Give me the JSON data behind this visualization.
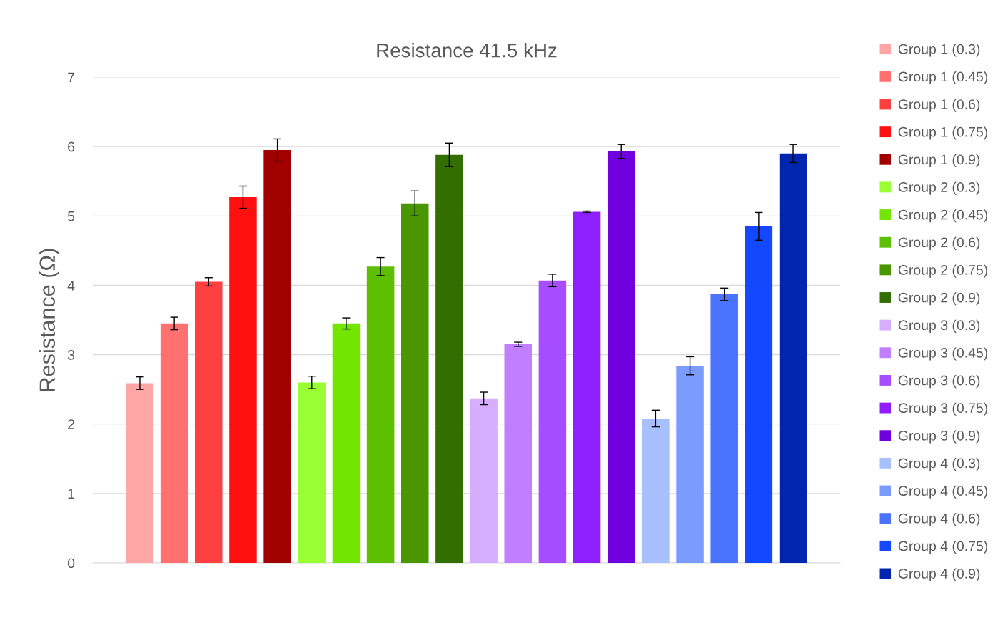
{
  "chart_data": {
    "type": "bar",
    "title": "Resistance 41.5 kHz",
    "ylabel": "Resistance (Ω)",
    "categories": [
      null
    ],
    "series": [
      {
        "name": "Group 1 (0.3)",
        "color": "#ffa6a6",
        "values": [
          2.59
        ],
        "errors": [
          0.09
        ]
      },
      {
        "name": "Group 1 (0.45)",
        "color": "#ff7070",
        "values": [
          3.45
        ],
        "errors": [
          0.09
        ]
      },
      {
        "name": "Group 1 (0.6)",
        "color": "#ff4040",
        "values": [
          4.05
        ],
        "errors": [
          0.06
        ]
      },
      {
        "name": "Group 1 (0.75)",
        "color": "#ff1010",
        "values": [
          5.27
        ],
        "errors": [
          0.16
        ]
      },
      {
        "name": "Group 1 (0.9)",
        "color": "#a00000",
        "values": [
          5.95
        ],
        "errors": [
          0.16
        ]
      },
      {
        "name": "Group 2 (0.3)",
        "color": "#99ff33",
        "values": [
          2.6
        ],
        "errors": [
          0.09
        ]
      },
      {
        "name": "Group 2 (0.45)",
        "color": "#72e600",
        "values": [
          3.45
        ],
        "errors": [
          0.08
        ]
      },
      {
        "name": "Group 2 (0.6)",
        "color": "#5cbf00",
        "values": [
          4.27
        ],
        "errors": [
          0.13
        ]
      },
      {
        "name": "Group 2 (0.75)",
        "color": "#4a9600",
        "values": [
          5.18
        ],
        "errors": [
          0.18
        ]
      },
      {
        "name": "Group 2 (0.9)",
        "color": "#336e00",
        "values": [
          5.88
        ],
        "errors": [
          0.17
        ]
      },
      {
        "name": "Group 3 (0.3)",
        "color": "#d6aeff",
        "values": [
          2.37
        ],
        "errors": [
          0.09
        ]
      },
      {
        "name": "Group 3 (0.45)",
        "color": "#bf7fff",
        "values": [
          3.15
        ],
        "errors": [
          0.03
        ]
      },
      {
        "name": "Group 3 (0.6)",
        "color": "#a64dff",
        "values": [
          4.07
        ],
        "errors": [
          0.09
        ]
      },
      {
        "name": "Group 3 (0.75)",
        "color": "#8f1fff",
        "values": [
          5.06
        ],
        "errors": [
          0.01
        ]
      },
      {
        "name": "Group 3 (0.9)",
        "color": "#7000e0",
        "values": [
          5.93
        ],
        "errors": [
          0.1
        ]
      },
      {
        "name": "Group 4 (0.3)",
        "color": "#a8c0ff",
        "values": [
          2.08
        ],
        "errors": [
          0.12
        ]
      },
      {
        "name": "Group 4 (0.45)",
        "color": "#7b9bff",
        "values": [
          2.84
        ],
        "errors": [
          0.13
        ]
      },
      {
        "name": "Group 4 (0.6)",
        "color": "#4a74ff",
        "values": [
          3.87
        ],
        "errors": [
          0.09
        ]
      },
      {
        "name": "Group 4 (0.75)",
        "color": "#1448ff",
        "values": [
          4.85
        ],
        "errors": [
          0.2
        ]
      },
      {
        "name": "Group 4 (0.9)",
        "color": "#0026b0",
        "values": [
          5.9
        ],
        "errors": [
          0.13
        ]
      }
    ],
    "ylim": [
      0,
      7
    ],
    "yticks": [
      0,
      1,
      2,
      3,
      4,
      5,
      6,
      7
    ],
    "grid": "y",
    "legend": "right"
  }
}
